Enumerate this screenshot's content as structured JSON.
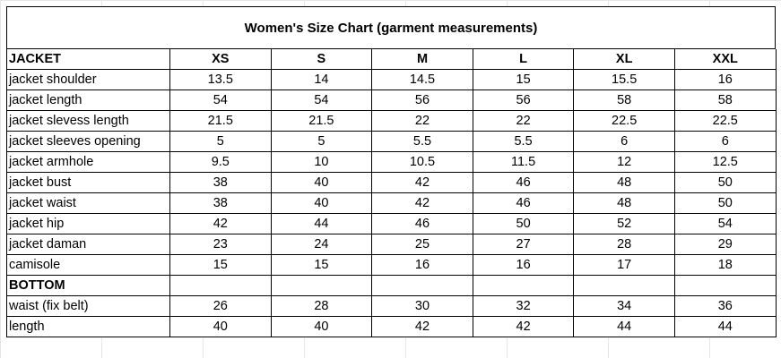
{
  "title": "Women's Size Chart (garment measurements)",
  "sizes": [
    "XS",
    "S",
    "M",
    "L",
    "XL",
    "XXL"
  ],
  "jacket": {
    "heading": "JACKET",
    "rows": [
      {
        "label": "jacket shoulder",
        "values": [
          "13.5",
          "14",
          "14.5",
          "15",
          "15.5",
          "16"
        ]
      },
      {
        "label": "jacket length",
        "values": [
          "54",
          "54",
          "56",
          "56",
          "58",
          "58"
        ]
      },
      {
        "label": "jacket slevess length",
        "values": [
          "21.5",
          "21.5",
          "22",
          "22",
          "22.5",
          "22.5"
        ]
      },
      {
        "label": "jacket sleeves opening",
        "values": [
          "5",
          "5",
          "5.5",
          "5.5",
          "6",
          "6"
        ]
      },
      {
        "label": "jacket armhole",
        "values": [
          "9.5",
          "10",
          "10.5",
          "11.5",
          "12",
          "12.5"
        ]
      },
      {
        "label": "jacket bust",
        "values": [
          "38",
          "40",
          "42",
          "46",
          "48",
          "50"
        ]
      },
      {
        "label": "jacket waist",
        "values": [
          "38",
          "40",
          "42",
          "46",
          "48",
          "50"
        ]
      },
      {
        "label": "jacket hip",
        "values": [
          "42",
          "44",
          "46",
          "50",
          "52",
          "54"
        ]
      },
      {
        "label": "jacket daman",
        "values": [
          "23",
          "24",
          "25",
          "27",
          "28",
          "29"
        ]
      },
      {
        "label": "camisole",
        "values": [
          "15",
          "15",
          "16",
          "16",
          "17",
          "18"
        ]
      }
    ]
  },
  "bottom": {
    "heading": "BOTTOM",
    "rows": [
      {
        "label": "waist (fix belt)",
        "values": [
          "26",
          "28",
          "30",
          "32",
          "34",
          "36"
        ]
      },
      {
        "label": "length",
        "values": [
          "40",
          "40",
          "42",
          "42",
          "44",
          "44"
        ]
      }
    ]
  }
}
